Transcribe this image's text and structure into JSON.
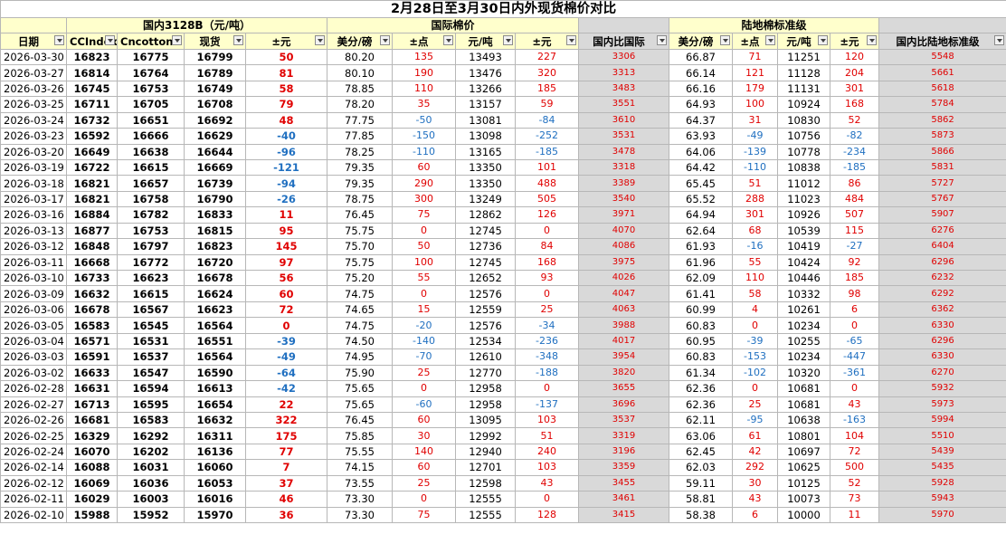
{
  "title": "2月28日至3月30日内外现货棉价对比",
  "groups": {
    "domestic": "国内3128B（元/吨）",
    "international": "国际棉价",
    "landlocked": "陆地棉标准级"
  },
  "headers": [
    "日期",
    "CCIndex",
    "Cncotton",
    "现货",
    "±元",
    "美分/磅",
    "±点",
    "元/吨",
    "±元",
    "国内比国际",
    "美分/磅",
    "±点",
    "元/吨",
    "±元",
    "国内比陆地标准级"
  ],
  "rows": [
    [
      "2026-03-30",
      "16823",
      "16775",
      "16799",
      "50",
      "80.20",
      "135",
      "13493",
      "227",
      "3306",
      "66.87",
      "71",
      "11251",
      "120",
      "5548"
    ],
    [
      "2026-03-27",
      "16814",
      "16764",
      "16789",
      "81",
      "80.10",
      "190",
      "13476",
      "320",
      "3313",
      "66.14",
      "121",
      "11128",
      "204",
      "5661"
    ],
    [
      "2026-03-26",
      "16745",
      "16753",
      "16749",
      "58",
      "78.85",
      "110",
      "13266",
      "185",
      "3483",
      "66.16",
      "179",
      "11131",
      "301",
      "5618"
    ],
    [
      "2026-03-25",
      "16711",
      "16705",
      "16708",
      "79",
      "78.20",
      "35",
      "13157",
      "59",
      "3551",
      "64.93",
      "100",
      "10924",
      "168",
      "5784"
    ],
    [
      "2026-03-24",
      "16732",
      "16651",
      "16692",
      "48",
      "77.75",
      "-50",
      "13081",
      "-84",
      "3610",
      "64.37",
      "31",
      "10830",
      "52",
      "5862"
    ],
    [
      "2026-03-23",
      "16592",
      "16666",
      "16629",
      "-40",
      "77.85",
      "-150",
      "13098",
      "-252",
      "3531",
      "63.93",
      "-49",
      "10756",
      "-82",
      "5873"
    ],
    [
      "2026-03-20",
      "16649",
      "16638",
      "16644",
      "-96",
      "78.25",
      "-110",
      "13165",
      "-185",
      "3478",
      "64.06",
      "-139",
      "10778",
      "-234",
      "5866"
    ],
    [
      "2026-03-19",
      "16722",
      "16615",
      "16669",
      "-121",
      "79.35",
      "60",
      "13350",
      "101",
      "3318",
      "64.42",
      "-110",
      "10838",
      "-185",
      "5831"
    ],
    [
      "2026-03-18",
      "16821",
      "16657",
      "16739",
      "-94",
      "79.35",
      "290",
      "13350",
      "488",
      "3389",
      "65.45",
      "51",
      "11012",
      "86",
      "5727"
    ],
    [
      "2026-03-17",
      "16821",
      "16758",
      "16790",
      "-26",
      "78.75",
      "300",
      "13249",
      "505",
      "3540",
      "65.52",
      "288",
      "11023",
      "484",
      "5767"
    ],
    [
      "2026-03-16",
      "16884",
      "16782",
      "16833",
      "11",
      "76.45",
      "75",
      "12862",
      "126",
      "3971",
      "64.94",
      "301",
      "10926",
      "507",
      "5907"
    ],
    [
      "2026-03-13",
      "16877",
      "16753",
      "16815",
      "95",
      "75.75",
      "0",
      "12745",
      "0",
      "4070",
      "62.64",
      "68",
      "10539",
      "115",
      "6276"
    ],
    [
      "2026-03-12",
      "16848",
      "16797",
      "16823",
      "145",
      "75.70",
      "50",
      "12736",
      "84",
      "4086",
      "61.93",
      "-16",
      "10419",
      "-27",
      "6404"
    ],
    [
      "2026-03-11",
      "16668",
      "16772",
      "16720",
      "97",
      "75.75",
      "100",
      "12745",
      "168",
      "3975",
      "61.96",
      "55",
      "10424",
      "92",
      "6296"
    ],
    [
      "2026-03-10",
      "16733",
      "16623",
      "16678",
      "56",
      "75.20",
      "55",
      "12652",
      "93",
      "4026",
      "62.09",
      "110",
      "10446",
      "185",
      "6232"
    ],
    [
      "2026-03-09",
      "16632",
      "16615",
      "16624",
      "60",
      "74.75",
      "0",
      "12576",
      "0",
      "4047",
      "61.41",
      "58",
      "10332",
      "98",
      "6292"
    ],
    [
      "2026-03-06",
      "16678",
      "16567",
      "16623",
      "72",
      "74.65",
      "15",
      "12559",
      "25",
      "4063",
      "60.99",
      "4",
      "10261",
      "6",
      "6362"
    ],
    [
      "2026-03-05",
      "16583",
      "16545",
      "16564",
      "0",
      "74.75",
      "-20",
      "12576",
      "-34",
      "3988",
      "60.83",
      "0",
      "10234",
      "0",
      "6330"
    ],
    [
      "2026-03-04",
      "16571",
      "16531",
      "16551",
      "-39",
      "74.50",
      "-140",
      "12534",
      "-236",
      "4017",
      "60.95",
      "-39",
      "10255",
      "-65",
      "6296"
    ],
    [
      "2026-03-03",
      "16591",
      "16537",
      "16564",
      "-49",
      "74.95",
      "-70",
      "12610",
      "-348",
      "3954",
      "60.83",
      "-153",
      "10234",
      "-447",
      "6330"
    ],
    [
      "2026-03-02",
      "16633",
      "16547",
      "16590",
      "-64",
      "75.90",
      "25",
      "12770",
      "-188",
      "3820",
      "61.34",
      "-102",
      "10320",
      "-361",
      "6270"
    ],
    [
      "2026-02-28",
      "16631",
      "16594",
      "16613",
      "-42",
      "75.65",
      "0",
      "12958",
      "0",
      "3655",
      "62.36",
      "0",
      "10681",
      "0",
      "5932"
    ],
    [
      "2026-02-27",
      "16713",
      "16595",
      "16654",
      "22",
      "75.65",
      "-60",
      "12958",
      "-137",
      "3696",
      "62.36",
      "25",
      "10681",
      "43",
      "5973"
    ],
    [
      "2026-02-26",
      "16681",
      "16583",
      "16632",
      "322",
      "76.45",
      "60",
      "13095",
      "103",
      "3537",
      "62.11",
      "-95",
      "10638",
      "-163",
      "5994"
    ],
    [
      "2026-02-25",
      "16329",
      "16292",
      "16311",
      "175",
      "75.85",
      "30",
      "12992",
      "51",
      "3319",
      "63.06",
      "61",
      "10801",
      "104",
      "5510"
    ],
    [
      "2026-02-24",
      "16070",
      "16202",
      "16136",
      "77",
      "75.55",
      "140",
      "12940",
      "240",
      "3196",
      "62.45",
      "42",
      "10697",
      "72",
      "5439"
    ],
    [
      "2026-02-14",
      "16088",
      "16031",
      "16060",
      "7",
      "74.15",
      "60",
      "12701",
      "103",
      "3359",
      "62.03",
      "292",
      "10625",
      "500",
      "5435"
    ],
    [
      "2026-02-12",
      "16069",
      "16036",
      "16053",
      "37",
      "73.55",
      "25",
      "12598",
      "43",
      "3455",
      "59.11",
      "30",
      "10125",
      "52",
      "5928"
    ],
    [
      "2026-02-11",
      "16029",
      "16003",
      "16016",
      "46",
      "73.30",
      "0",
      "12555",
      "0",
      "3461",
      "58.81",
      "43",
      "10073",
      "73",
      "5943"
    ],
    [
      "2026-02-10",
      "15988",
      "15952",
      "15970",
      "36",
      "73.30",
      "75",
      "12555",
      "128",
      "3415",
      "58.38",
      "6",
      "10000",
      "11",
      "5970"
    ]
  ],
  "colors": {
    "header_yellow": "#ffffcc",
    "grey_col": "#d9d9d9",
    "positive": "#e00000",
    "negative": "#1f6fc0"
  }
}
